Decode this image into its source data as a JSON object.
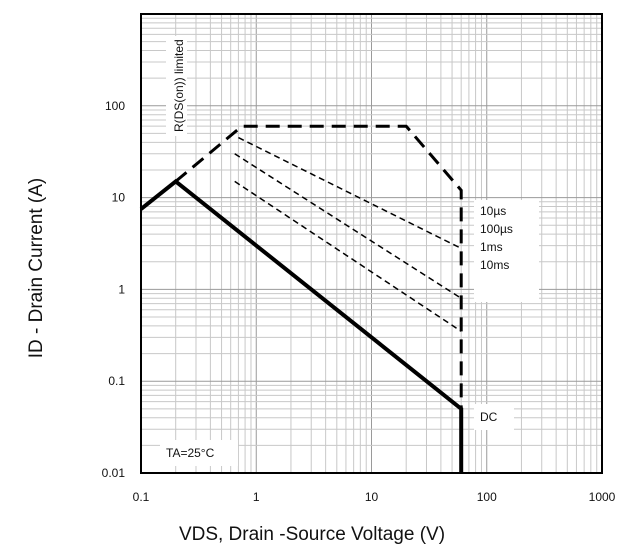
{
  "chart_data": {
    "type": "line",
    "xscale": "log",
    "yscale": "log",
    "xlim": [
      0.1,
      1000
    ],
    "ylim": [
      0.01,
      1000
    ],
    "xlabel": "VDS, Drain -Source Voltage (V)",
    "ylabel": "ID - Drain Current (A)",
    "xticks": [
      "0.1",
      "1",
      "10",
      "100",
      "1000"
    ],
    "yticks": [
      "0.01",
      "0.1",
      "1",
      "10",
      "100"
    ],
    "grid": true,
    "annotations": {
      "rds_limited": "R(DS(on)) limited",
      "temperature": "TA=25°C",
      "pulse_labels": [
        "10µs",
        "100µs",
        "1ms",
        "10ms"
      ],
      "dc_label": "DC"
    },
    "series": [
      {
        "name": "DC",
        "style": "solid",
        "x": [
          0.1,
          0.2,
          60,
          60
        ],
        "y": [
          7.5,
          15,
          0.05,
          0.01
        ]
      },
      {
        "name": "10µs",
        "style": "dashed",
        "x": [
          0.2,
          0.75,
          3,
          10,
          20,
          60,
          60
        ],
        "y": [
          15,
          60,
          60,
          60,
          60,
          12,
          0.01
        ]
      },
      {
        "name": "100µs",
        "style": "dashed",
        "x": [
          0.7,
          60
        ],
        "y": [
          45,
          2.8
        ]
      },
      {
        "name": "1ms",
        "style": "dashed",
        "x": [
          0.65,
          60
        ],
        "y": [
          30,
          0.8
        ]
      },
      {
        "name": "10ms",
        "style": "dashed",
        "x": [
          0.65,
          60
        ],
        "y": [
          15,
          0.35
        ]
      }
    ]
  }
}
